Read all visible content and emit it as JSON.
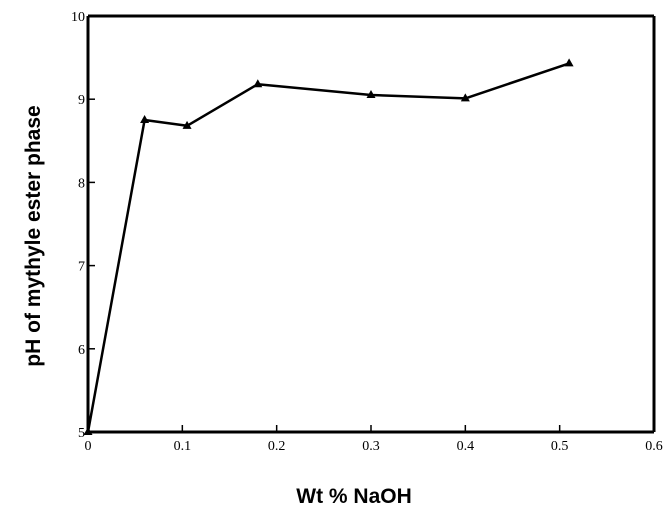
{
  "chart_data": {
    "type": "line",
    "title": "",
    "xlabel": "Wt % NaOH",
    "ylabel": "pH of mythyle ester phase",
    "xlim": [
      0,
      0.6
    ],
    "ylim": [
      5,
      10
    ],
    "x_ticks": [
      0,
      0.1,
      0.2,
      0.3,
      0.4,
      0.5,
      0.6
    ],
    "x_tick_labels": [
      "0",
      "0.1",
      "0.2",
      "0.3",
      "0.4",
      "0.5",
      "0.6"
    ],
    "y_ticks": [
      5,
      6,
      7,
      8,
      9,
      10
    ],
    "y_tick_labels": [
      "5",
      "6",
      "7",
      "8",
      "9",
      "10"
    ],
    "grid": false,
    "legend": "none",
    "line_color": "#000000",
    "marker": "triangle",
    "series": [
      {
        "x": [
          0,
          0.06,
          0.105,
          0.18,
          0.3,
          0.4,
          0.51
        ],
        "y": [
          5.0,
          8.75,
          8.68,
          9.18,
          9.05,
          9.01,
          9.43
        ]
      }
    ]
  }
}
